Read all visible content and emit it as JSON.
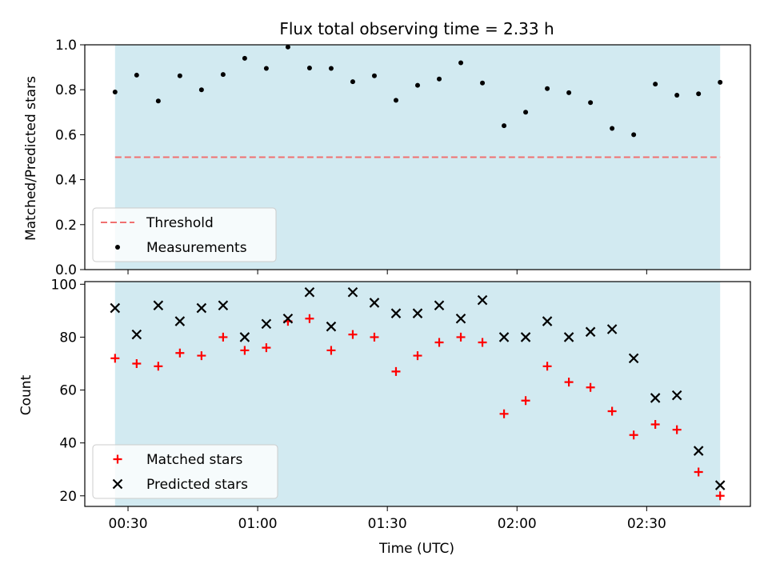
{
  "title": "Flux total observing time = 2.33 h",
  "chart_data": [
    {
      "type": "scatter",
      "ylabel": "Matched/Predicted stars",
      "ylim": [
        0.0,
        1.0
      ],
      "yticks": [
        "0.0",
        "0.2",
        "0.4",
        "0.6",
        "0.8",
        "1.0"
      ],
      "shaded_span": [
        "00:27",
        "02:47"
      ],
      "shade_color": "#add8e6",
      "threshold": {
        "name": "Threshold",
        "value": 0.5,
        "color": "#f07070",
        "style": "dashed"
      },
      "series": [
        {
          "name": "Measurements",
          "marker": "dot",
          "color": "#000000",
          "x": [
            "00:27",
            "00:32",
            "00:37",
            "00:42",
            "00:47",
            "00:52",
            "00:57",
            "01:02",
            "01:07",
            "01:12",
            "01:17",
            "01:22",
            "01:27",
            "01:32",
            "01:37",
            "01:42",
            "01:47",
            "01:52",
            "01:57",
            "02:02",
            "02:07",
            "02:12",
            "02:17",
            "02:22",
            "02:27",
            "02:32",
            "02:37",
            "02:42",
            "02:47"
          ],
          "y": [
            0.79,
            0.865,
            0.75,
            0.862,
            0.8,
            0.868,
            0.94,
            0.895,
            0.99,
            0.897,
            0.895,
            0.836,
            0.862,
            0.753,
            0.82,
            0.848,
            0.92,
            0.83,
            0.64,
            0.7,
            0.805,
            0.787,
            0.743,
            0.628,
            0.6,
            0.825,
            0.776,
            0.782,
            0.833
          ]
        }
      ],
      "legend": [
        "Threshold",
        "Measurements"
      ],
      "legend_position": "lower-left"
    },
    {
      "type": "scatter",
      "ylabel": "Count",
      "xlabel": "Time (UTC)",
      "ylim": [
        16,
        101
      ],
      "yticks": [
        "20",
        "40",
        "60",
        "80",
        "100"
      ],
      "xticks": [
        "00:30",
        "01:00",
        "01:30",
        "02:00",
        "02:30"
      ],
      "x_range": [
        "00:20",
        "02:54"
      ],
      "shaded_span": [
        "00:27",
        "02:47"
      ],
      "shade_color": "#add8e6",
      "series": [
        {
          "name": "Matched stars",
          "marker": "plus",
          "color": "#ff0000",
          "x": [
            "00:27",
            "00:32",
            "00:37",
            "00:42",
            "00:47",
            "00:52",
            "00:57",
            "01:02",
            "01:07",
            "01:12",
            "01:17",
            "01:22",
            "01:27",
            "01:32",
            "01:37",
            "01:42",
            "01:47",
            "01:52",
            "01:57",
            "02:02",
            "02:07",
            "02:12",
            "02:17",
            "02:22",
            "02:27",
            "02:32",
            "02:37",
            "02:42",
            "02:47"
          ],
          "y": [
            72,
            70,
            69,
            74,
            73,
            80,
            75,
            76,
            86,
            87,
            75,
            81,
            80,
            67,
            73,
            78,
            80,
            78,
            51,
            56,
            69,
            63,
            61,
            52,
            43,
            47,
            45,
            29,
            20
          ]
        },
        {
          "name": "Predicted stars",
          "marker": "x",
          "color": "#000000",
          "x": [
            "00:27",
            "00:32",
            "00:37",
            "00:42",
            "00:47",
            "00:52",
            "00:57",
            "01:02",
            "01:07",
            "01:12",
            "01:17",
            "01:22",
            "01:27",
            "01:32",
            "01:37",
            "01:42",
            "01:47",
            "01:52",
            "01:57",
            "02:02",
            "02:07",
            "02:12",
            "02:17",
            "02:22",
            "02:27",
            "02:32",
            "02:37",
            "02:42",
            "02:47"
          ],
          "y": [
            91,
            81,
            92,
            86,
            91,
            92,
            80,
            85,
            87,
            97,
            84,
            97,
            93,
            89,
            89,
            92,
            87,
            94,
            80,
            80,
            86,
            80,
            82,
            83,
            72,
            57,
            58,
            37,
            24
          ]
        }
      ],
      "legend": [
        "Matched stars",
        "Predicted stars"
      ],
      "legend_position": "lower-left"
    }
  ]
}
